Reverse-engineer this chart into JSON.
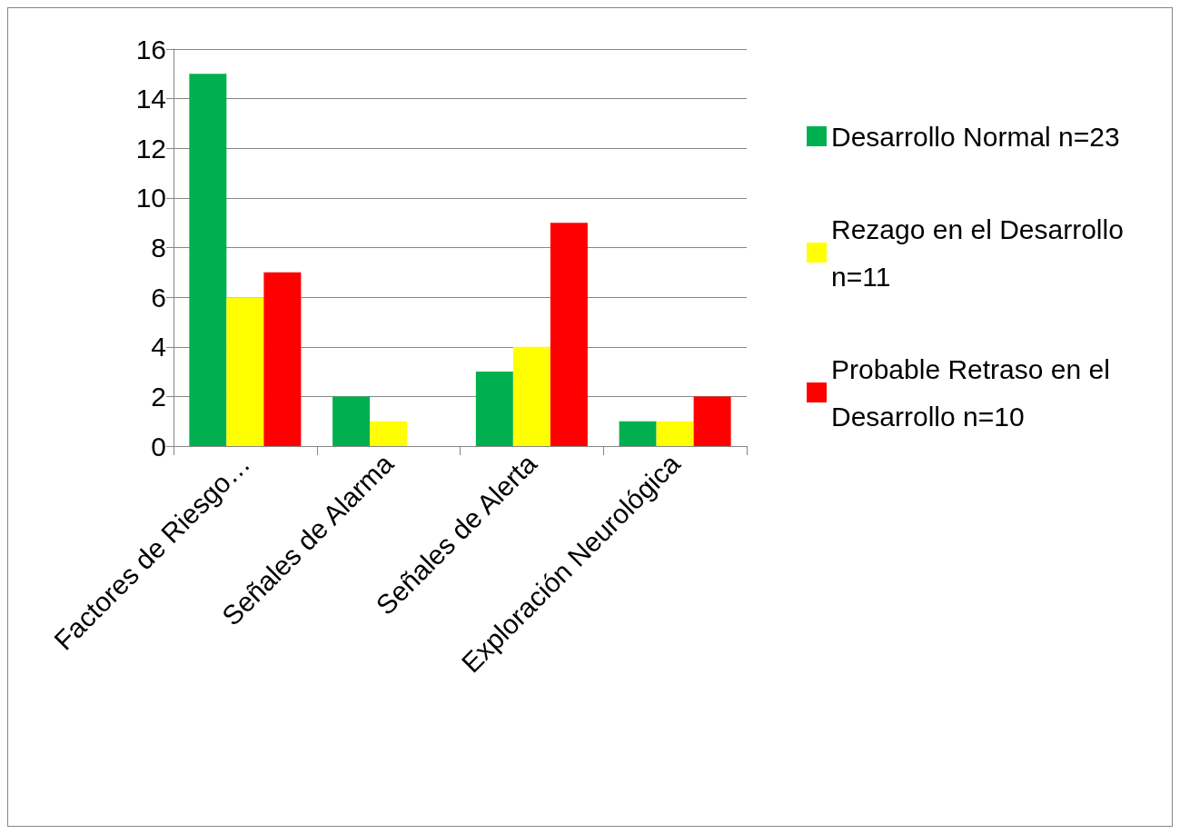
{
  "chart_data": {
    "type": "bar",
    "categories": [
      "Factores de Riesgo…",
      "Señales de Alarma",
      "Señales de Alerta",
      "Exploración Neurológica"
    ],
    "series": [
      {
        "name": "Desarrollo Normal n=23",
        "color": "#00b050",
        "values": [
          15,
          2,
          3,
          1
        ]
      },
      {
        "name": "Rezago en el Desarrollo n=11",
        "color": "#ffff00",
        "values": [
          6,
          1,
          4,
          1
        ]
      },
      {
        "name": "Probable Retraso en el Desarrollo n=10",
        "color": "#ff0000",
        "values": [
          7,
          0,
          9,
          2
        ]
      }
    ],
    "ylim": [
      0,
      16
    ],
    "yticks": [
      0,
      2,
      4,
      6,
      8,
      10,
      12,
      14,
      16
    ],
    "grid": "y",
    "legend": "right"
  }
}
